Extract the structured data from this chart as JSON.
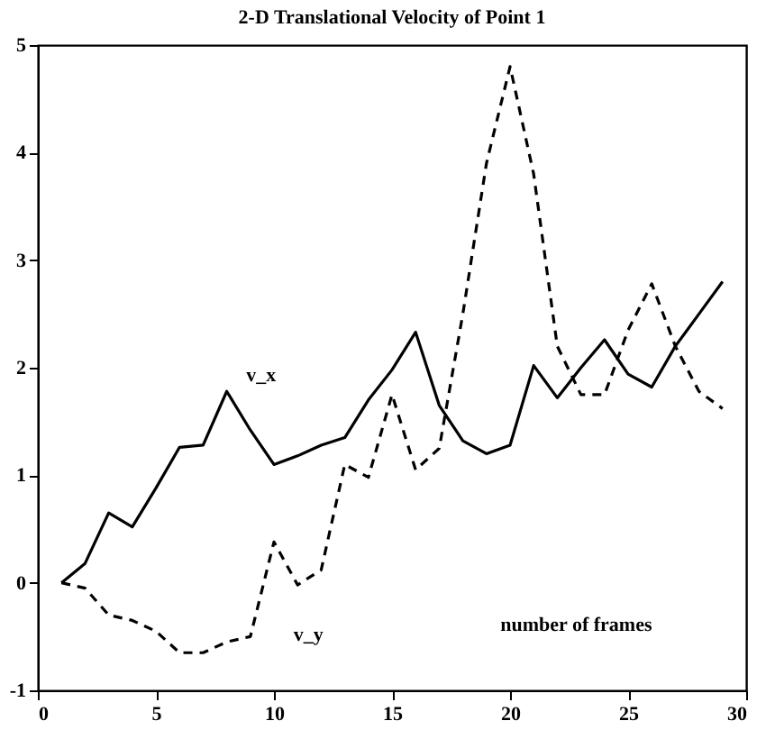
{
  "chart_data": {
    "type": "line",
    "title": "2-D Translational Velocity of Point 1",
    "x": [
      1,
      2,
      3,
      4,
      5,
      6,
      7,
      8,
      9,
      10,
      11,
      12,
      13,
      14,
      15,
      16,
      17,
      18,
      19,
      20,
      21,
      22,
      23,
      24,
      25,
      26,
      27,
      28,
      29
    ],
    "series": [
      {
        "name": "v_x",
        "color": "#000000",
        "line_style": "solid",
        "values": [
          0,
          0.18,
          0.65,
          0.52,
          0.88,
          1.26,
          1.28,
          1.78,
          1.42,
          1.1,
          1.18,
          1.28,
          1.35,
          1.7,
          1.98,
          2.33,
          1.65,
          1.32,
          1.2,
          1.28,
          2.02,
          1.72,
          2.0,
          2.26,
          1.94,
          1.82,
          2.2,
          2.5,
          2.8
        ]
      },
      {
        "name": "v_y",
        "color": "#000000",
        "line_style": "dashed",
        "values": [
          0,
          -0.05,
          -0.3,
          -0.35,
          -0.45,
          -0.65,
          -0.65,
          -0.55,
          -0.5,
          0.38,
          -0.02,
          0.12,
          1.1,
          0.98,
          1.75,
          1.05,
          1.25,
          2.5,
          3.9,
          4.8,
          3.8,
          2.2,
          1.75,
          1.75,
          2.35,
          2.78,
          2.2,
          1.78,
          1.62
        ]
      }
    ],
    "annotations": [
      "number of frames"
    ],
    "xlim": [
      0,
      30
    ],
    "xticks": [
      0,
      5,
      10,
      15,
      20,
      25,
      30
    ],
    "ylim": [
      -1,
      5
    ],
    "yticks": [
      -1,
      0,
      1,
      2,
      3,
      4,
      5
    ],
    "grid": false
  }
}
